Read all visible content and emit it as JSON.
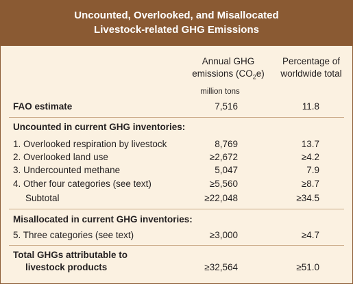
{
  "title": {
    "line1": "Uncounted, Overlooked, and Misallocated",
    "line2": "Livestock-related GHG Emissions"
  },
  "columns": {
    "col1_line1": "Annual GHG",
    "col1_line2_prefix": "emissions (CO",
    "col1_line2_sub": "2",
    "col1_line2_suffix": "e)",
    "col2_line1": "Percentage of",
    "col2_line2": "worldwide total",
    "units": "million tons"
  },
  "fao": {
    "label": "FAO estimate",
    "emissions": "7,516",
    "percent": "11.8"
  },
  "uncounted": {
    "heading": "Uncounted in current GHG inventories:",
    "rows": [
      {
        "label": "1. Overlooked respiration by livestock",
        "emissions": "8,769",
        "percent": "13.7"
      },
      {
        "label": "2. Overlooked land use",
        "emissions": "≥2,672",
        "percent": "≥4.2"
      },
      {
        "label": "3. Undercounted methane",
        "emissions": "5,047",
        "percent": "7.9"
      },
      {
        "label": "4. Other four categories (see text)",
        "emissions": "≥5,560",
        "percent": "≥8.7"
      }
    ],
    "subtotal": {
      "label": "Subtotal",
      "emissions": "≥22,048",
      "percent": "≥34.5"
    }
  },
  "misallocated": {
    "heading": "Misallocated in current GHG inventories:",
    "row": {
      "label": "5. Three categories (see text)",
      "emissions": "≥3,000",
      "percent": "≥4.7"
    }
  },
  "total": {
    "label_line1": "Total GHGs attributable to",
    "label_line2": "livestock products",
    "emissions": "≥32,564",
    "percent": "≥51.0"
  }
}
